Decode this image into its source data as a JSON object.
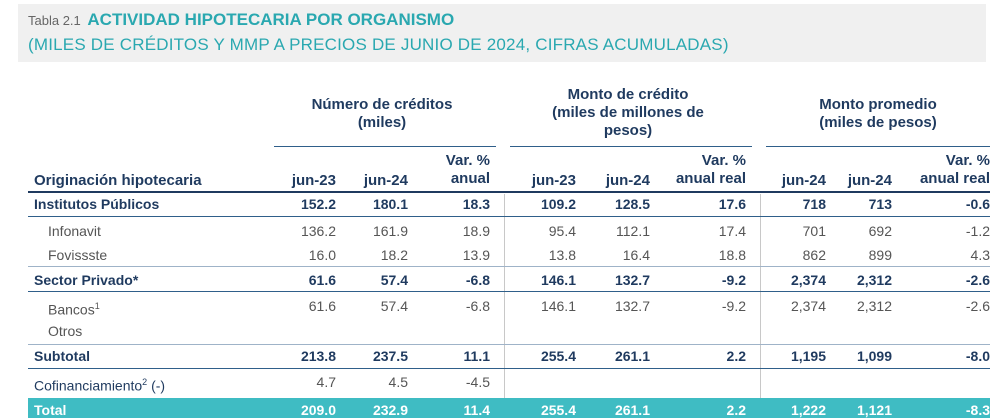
{
  "title": {
    "prefix": "Tabla 2.1",
    "main": "ACTIVIDAD HIPOTECARIA POR ORGANISMO",
    "subtitle": "(MILES DE CRÉDITOS Y MMP A PRECIOS DE JUNIO DE 2024, CIFRAS ACUMULADAS)"
  },
  "groups": {
    "g1_l1": "Número de créditos",
    "g1_l2": "(miles)",
    "g2_l1": "Monto de crédito",
    "g2_l2": "(miles de millones de",
    "g2_l3": "pesos)",
    "g3_l1": "Monto promedio",
    "g3_l2": "(miles de pesos)"
  },
  "columns": {
    "row_header": "Originación hipotecaria",
    "c1": "jun-23",
    "c2": "jun-24",
    "c3_l1": "Var. %",
    "c3_l2": "anual",
    "c4": "jun-23",
    "c5": "jun-24",
    "c6_l1": "Var. %",
    "c6_l2": "anual real",
    "c7": "jun-24",
    "c8": "jun-24",
    "c9_l1": "Var. %",
    "c9_l2": "anual real"
  },
  "rows": [
    {
      "label": "Institutos Públicos",
      "v": [
        "152.2",
        "180.1",
        "18.3",
        "109.2",
        "128.5",
        "17.6",
        "718",
        "713",
        "-0.6"
      ]
    },
    {
      "label": "Infonavit",
      "v": [
        "136.2",
        "161.9",
        "18.9",
        "95.4",
        "112.1",
        "17.4",
        "701",
        "692",
        "-1.2"
      ]
    },
    {
      "label": "Fovissste",
      "v": [
        "16.0",
        "18.2",
        "13.9",
        "13.8",
        "16.4",
        "18.8",
        "862",
        "899",
        "4.3"
      ]
    },
    {
      "label": "Sector Privado*",
      "v": [
        "61.6",
        "57.4",
        "-6.8",
        "146.1",
        "132.7",
        "-9.2",
        "2,374",
        "2,312",
        "-2.6"
      ]
    },
    {
      "label": "Bancos",
      "sup": "1",
      "v": [
        "61.6",
        "57.4",
        "-6.8",
        "146.1",
        "132.7",
        "-9.2",
        "2,374",
        "2,312",
        "-2.6"
      ]
    },
    {
      "label": "Otros",
      "v": [
        "",
        "",
        "",
        "",
        "",
        "",
        "",
        "",
        ""
      ]
    },
    {
      "label": "Subtotal",
      "v": [
        "213.8",
        "237.5",
        "11.1",
        "255.4",
        "261.1",
        "2.2",
        "1,195",
        "1,099",
        "-8.0"
      ]
    },
    {
      "label": "Cofinanciamiento",
      "sup": "2",
      "suffix": " (-)",
      "v": [
        "4.7",
        "4.5",
        "-4.5",
        "",
        "",
        "",
        "",
        "",
        ""
      ]
    },
    {
      "label": "Total",
      "v": [
        "209.0",
        "232.9",
        "11.4",
        "255.4",
        "261.1",
        "2.2",
        "1,222",
        "1,121",
        "-8.3"
      ]
    }
  ]
}
